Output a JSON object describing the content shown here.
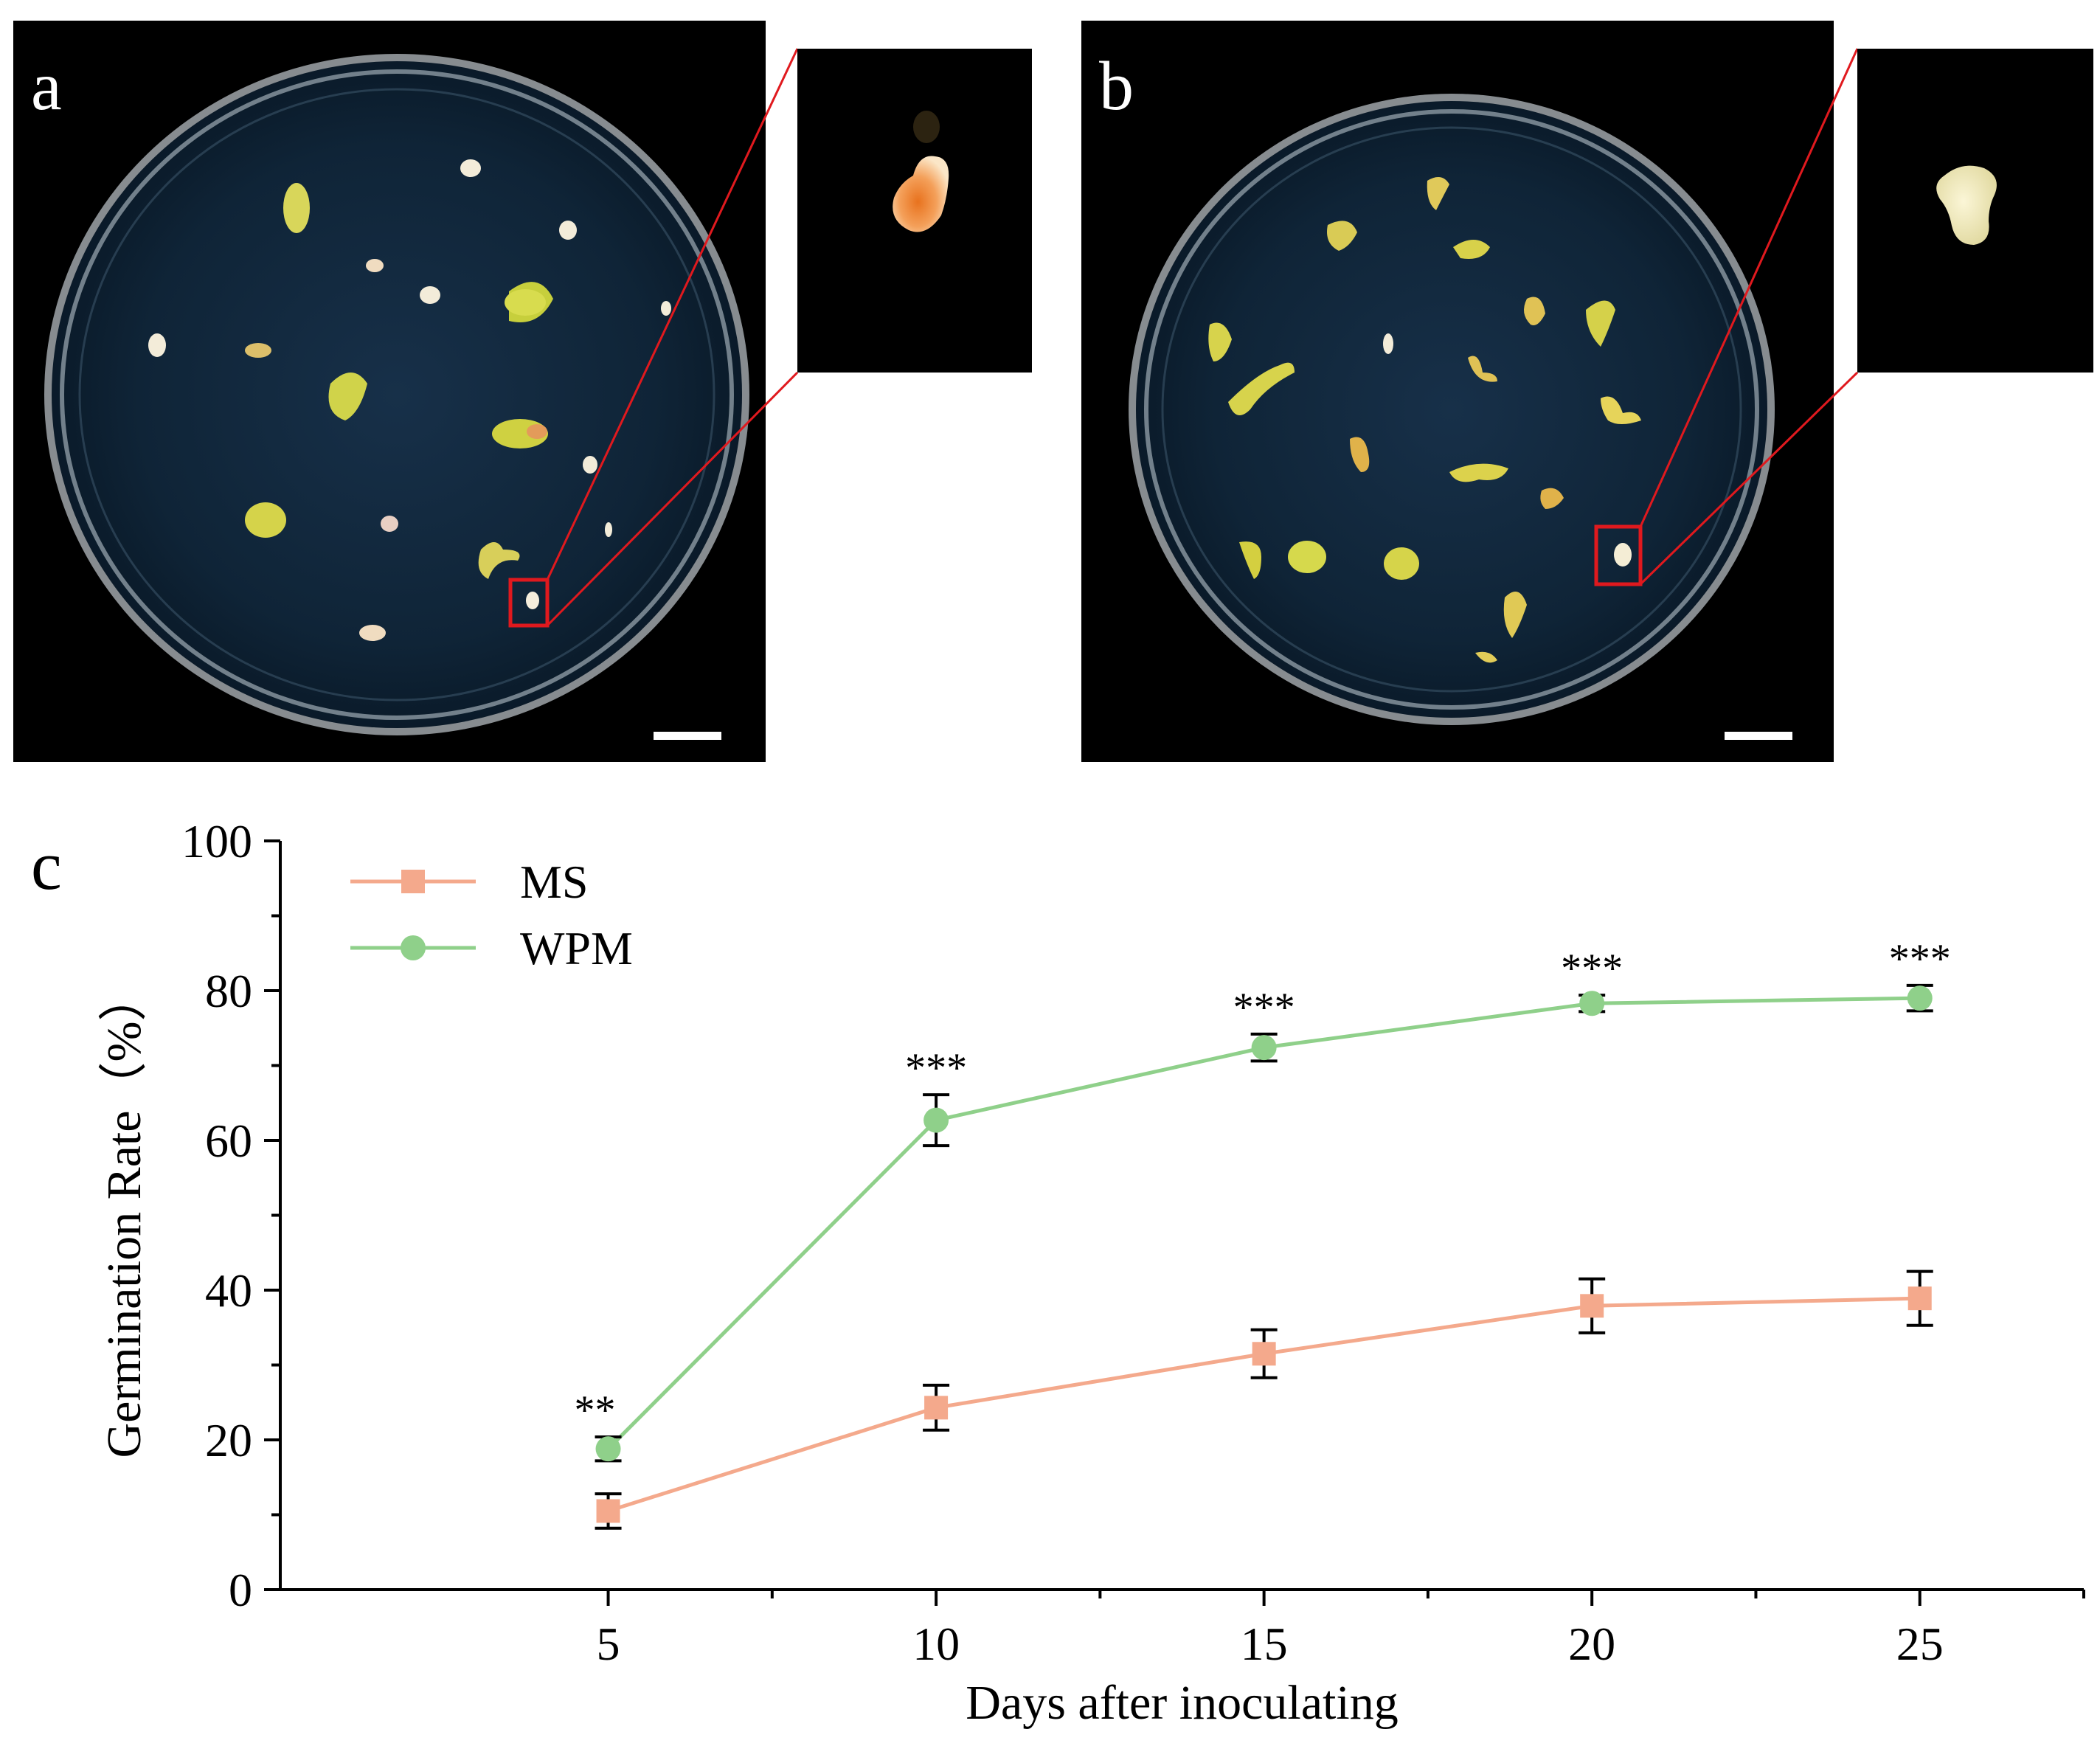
{
  "panels": {
    "a": {
      "letter": "a"
    },
    "b": {
      "letter": "b"
    },
    "c": {
      "letter": "c"
    }
  },
  "colors": {
    "ms": "#f4a98c",
    "wpm": "#8fd08a",
    "photo_background": "#000000",
    "agar": "#0e2236",
    "zoom_box": "#e0191e",
    "axis": "#000000"
  },
  "chart_data": {
    "type": "line",
    "xlabel": "Days after inoculating",
    "ylabel": "Germination Rate（%）",
    "xlim": [
      0,
      27.5
    ],
    "ylim": [
      0,
      100
    ],
    "xticks": [
      5,
      10,
      15,
      20,
      25
    ],
    "yticks": [
      0,
      20,
      40,
      60,
      80,
      100
    ],
    "grid": false,
    "legend_position": "top-left",
    "x": [
      5,
      10,
      15,
      20,
      25
    ],
    "series": [
      {
        "name": "MS",
        "marker": "square",
        "color": "#f4a98c",
        "values": [
          10.5,
          24.3,
          31.5,
          37.9,
          38.9
        ],
        "errors": [
          2.3,
          3.0,
          3.2,
          3.6,
          3.6
        ]
      },
      {
        "name": "WPM",
        "marker": "circle",
        "color": "#8fd08a",
        "values": [
          18.8,
          62.7,
          72.4,
          78.3,
          79.0
        ],
        "errors": [
          1.6,
          3.4,
          1.8,
          1.1,
          1.7
        ]
      }
    ],
    "annotations": [
      "**",
      "***",
      "***",
      "***",
      "***"
    ]
  }
}
